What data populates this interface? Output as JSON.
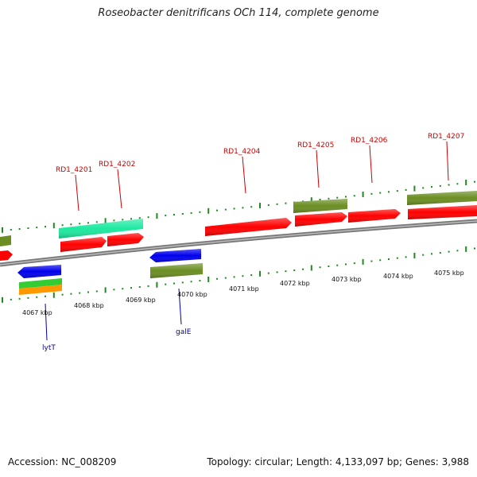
{
  "title": "Roseobacter denitrificans OCh 114, complete genome",
  "footer": {
    "accession": "Accession: NC_008209",
    "summary": "Topology: circular; Length: 4,133,097 bp; Genes: 3,988"
  },
  "colors": {
    "red": "#ff0000",
    "olive": "#6b8e23",
    "teal": "#1de9a0",
    "blue": "#0000ee",
    "green": "#33cc33",
    "orange": "#ff9900",
    "tick": "#228822",
    "backbone": "#888888",
    "label_red": "#cc0000",
    "label_blue": "#0000aa"
  },
  "scale_ticks": [
    "4067 kbp",
    "4068 kbp",
    "4069 kbp",
    "4070 kbp",
    "4071 kbp",
    "4072 kbp",
    "4073 kbp",
    "4074 kbp",
    "4075 kbp"
  ],
  "gene_labels_top": [
    "RD1_4201",
    "RD1_4202",
    "RD1_4204",
    "RD1_4205",
    "RD1_4206",
    "RD1_4207"
  ],
  "gene_labels_bottom": [
    "lytT",
    "galE"
  ]
}
